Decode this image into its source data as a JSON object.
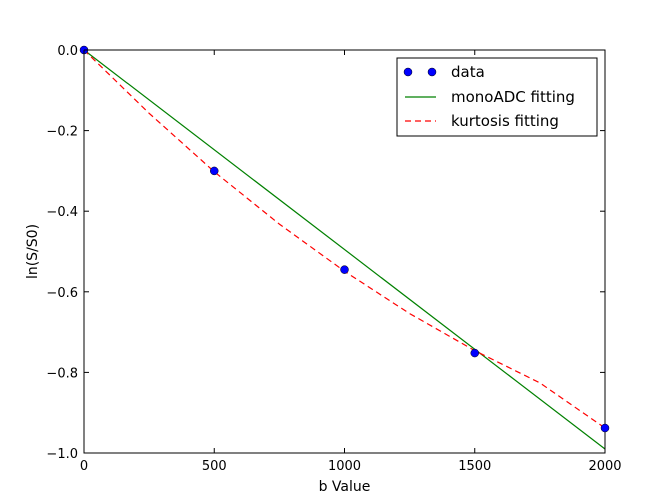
{
  "chart_data": {
    "type": "line",
    "xlabel": "b Value",
    "ylabel": "ln(S/S0)",
    "xlim": [
      0,
      2000
    ],
    "ylim": [
      -1.0,
      0.0
    ],
    "xticks": [
      0,
      500,
      1000,
      1500,
      2000
    ],
    "xtick_labels": [
      "0",
      "500",
      "1000",
      "1500",
      "2000"
    ],
    "yticks": [
      0.0,
      -0.2,
      -0.4,
      -0.6,
      -0.8,
      -1.0
    ],
    "ytick_labels": [
      "0.0",
      "−0.2",
      "−0.4",
      "−0.6",
      "−0.8",
      "−1.0"
    ],
    "grid": false,
    "legend_position": "top-right",
    "series": [
      {
        "name": "data",
        "kind": "scatter",
        "color": "#0000ff",
        "x": [
          0,
          500,
          1000,
          1500,
          2000
        ],
        "y": [
          0.0,
          -0.3,
          -0.545,
          -0.752,
          -0.938
        ]
      },
      {
        "name": "monoADC fitting",
        "kind": "line",
        "style": "solid",
        "color": "#008000",
        "x": [
          0,
          2000
        ],
        "y": [
          0.0,
          -0.99
        ]
      },
      {
        "name": "kurtosis fitting",
        "kind": "line",
        "style": "dashed",
        "color": "#ff0000",
        "x": [
          0,
          250,
          500,
          750,
          1000,
          1250,
          1500,
          1750,
          2000
        ],
        "y": [
          0.0,
          -0.157,
          -0.302,
          -0.432,
          -0.549,
          -0.654,
          -0.746,
          -0.826,
          -0.938
        ]
      }
    ]
  }
}
